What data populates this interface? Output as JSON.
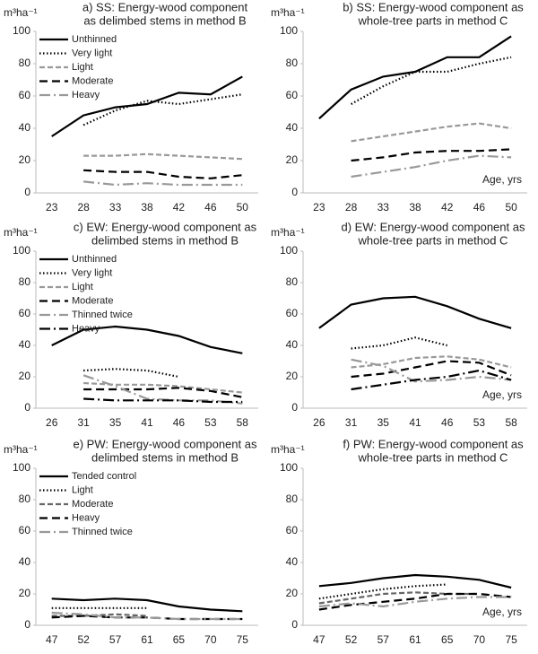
{
  "chart_data": [
    {
      "type": "line",
      "title": [
        "a) SS: Energy-wood component",
        "as delimbed stems in method B"
      ],
      "ylabel": "m³ha⁻¹",
      "categories": [
        "23",
        "28",
        "33",
        "38",
        "42",
        "46",
        "50"
      ],
      "ylim": [
        0,
        100
      ],
      "yticks": [
        0,
        20,
        40,
        60,
        80,
        100
      ],
      "legend": "upper left",
      "series": [
        {
          "name": "Unthinned",
          "color": "#000000",
          "dash": "solid",
          "values": [
            35,
            48,
            53,
            55,
            62,
            61,
            72
          ]
        },
        {
          "name": "Very light",
          "color": "#000000",
          "dash": "dotted",
          "values": [
            null,
            42,
            51,
            57,
            55,
            58,
            61
          ]
        },
        {
          "name": "Light",
          "color": "#999999",
          "dash": "dashed",
          "values": [
            null,
            23,
            23,
            24,
            23,
            22,
            21
          ]
        },
        {
          "name": "Moderate",
          "color": "#000000",
          "dash": "longdash",
          "values": [
            null,
            14,
            13,
            13,
            10,
            9,
            11
          ]
        },
        {
          "name": "Heavy",
          "color": "#999999",
          "dash": "dashdot",
          "values": [
            null,
            7,
            5,
            6,
            5,
            5,
            5
          ]
        }
      ]
    },
    {
      "type": "line",
      "title": [
        "b) SS: Energy-wood component as",
        "whole-tree parts in method C"
      ],
      "ylabel": "m³ha⁻¹",
      "xlabel": "Age, yrs",
      "categories": [
        "23",
        "28",
        "33",
        "38",
        "42",
        "46",
        "50"
      ],
      "ylim": [
        0,
        100
      ],
      "yticks": [
        0,
        20,
        40,
        60,
        80,
        100
      ],
      "series": [
        {
          "color": "#000000",
          "dash": "solid",
          "values": [
            46,
            64,
            72,
            75,
            84,
            84,
            97
          ]
        },
        {
          "color": "#000000",
          "dash": "dotted",
          "values": [
            null,
            55,
            66,
            75,
            75,
            80,
            84
          ]
        },
        {
          "color": "#999999",
          "dash": "dashed",
          "values": [
            null,
            32,
            35,
            38,
            41,
            43,
            40
          ]
        },
        {
          "color": "#000000",
          "dash": "longdash",
          "values": [
            null,
            20,
            22,
            25,
            26,
            26,
            27
          ]
        },
        {
          "color": "#999999",
          "dash": "dashdot",
          "values": [
            null,
            10,
            13,
            16,
            20,
            23,
            22
          ]
        }
      ]
    },
    {
      "type": "line",
      "title": [
        "c) EW: Energy-wood component as",
        "delimbed stems in method B"
      ],
      "ylabel": "m³ha⁻¹",
      "categories": [
        "26",
        "31",
        "35",
        "41",
        "46",
        "53",
        "58"
      ],
      "ylim": [
        0,
        100
      ],
      "yticks": [
        0,
        20,
        40,
        60,
        80,
        100
      ],
      "legend": "upper left",
      "series": [
        {
          "name": "Unthinned",
          "color": "#000000",
          "dash": "solid",
          "values": [
            40,
            50,
            52,
            50,
            46,
            39,
            35
          ]
        },
        {
          "name": "Very light",
          "color": "#000000",
          "dash": "dotted",
          "values": [
            null,
            24,
            25,
            24,
            20,
            null,
            null
          ]
        },
        {
          "name": "Light",
          "color": "#999999",
          "dash": "dashed",
          "values": [
            null,
            16,
            15,
            15,
            14,
            12,
            10
          ]
        },
        {
          "name": "Moderate",
          "color": "#000000",
          "dash": "longdash",
          "values": [
            null,
            12,
            12,
            12,
            13,
            11,
            7
          ]
        },
        {
          "name": "Thinned twice",
          "color": "#999999",
          "dash": "dashdot",
          "values": [
            null,
            21,
            14,
            6,
            5,
            5,
            3
          ]
        },
        {
          "name": "Heavy",
          "color": "#000000",
          "dash": "dashdot",
          "values": [
            null,
            6,
            5,
            5,
            5,
            4,
            4
          ]
        }
      ]
    },
    {
      "type": "line",
      "title": [
        "d) EW: Energy-wood component as",
        "whole-tree parts in method C"
      ],
      "ylabel": "m³ha⁻¹",
      "xlabel": "Age, yrs",
      "categories": [
        "26",
        "31",
        "35",
        "41",
        "46",
        "53",
        "58"
      ],
      "ylim": [
        0,
        100
      ],
      "yticks": [
        0,
        20,
        40,
        60,
        80,
        100
      ],
      "series": [
        {
          "color": "#000000",
          "dash": "solid",
          "values": [
            51,
            66,
            70,
            71,
            65,
            57,
            51
          ]
        },
        {
          "color": "#000000",
          "dash": "dotted",
          "values": [
            null,
            38,
            40,
            45,
            40,
            null,
            null
          ]
        },
        {
          "color": "#999999",
          "dash": "dashed",
          "values": [
            null,
            26,
            28,
            32,
            33,
            31,
            26
          ]
        },
        {
          "color": "#000000",
          "dash": "longdash",
          "values": [
            null,
            20,
            22,
            26,
            30,
            29,
            21
          ]
        },
        {
          "color": "#999999",
          "dash": "dashdot",
          "values": [
            null,
            31,
            27,
            17,
            18,
            20,
            18
          ]
        },
        {
          "color": "#000000",
          "dash": "dashdot",
          "values": [
            null,
            12,
            15,
            18,
            20,
            24,
            18
          ]
        }
      ]
    },
    {
      "type": "line",
      "title": [
        "e) PW: Energy-wood component as",
        "delimbed stems in method B"
      ],
      "ylabel": "m³ha⁻¹",
      "categories": [
        "47",
        "52",
        "57",
        "61",
        "65",
        "70",
        "75"
      ],
      "ylim": [
        0,
        100
      ],
      "yticks": [
        0,
        20,
        40,
        60,
        80,
        100
      ],
      "legend": "upper left",
      "series": [
        {
          "name": "Tended control",
          "color": "#000000",
          "dash": "solid",
          "values": [
            17,
            16,
            17,
            16,
            12,
            10,
            9
          ]
        },
        {
          "name": "Light",
          "color": "#000000",
          "dash": "dotted",
          "values": [
            11,
            11,
            11,
            11,
            null,
            null,
            null
          ]
        },
        {
          "name": "Moderate",
          "color": "#666666",
          "dash": "dashed",
          "values": [
            6,
            6,
            7,
            6,
            null,
            null,
            null
          ]
        },
        {
          "name": "Heavy",
          "color": "#000000",
          "dash": "longdash",
          "values": [
            5,
            6,
            5,
            5,
            4,
            4,
            4
          ]
        },
        {
          "name": "Thinned twice",
          "color": "#999999",
          "dash": "dashdot",
          "values": [
            8,
            7,
            5,
            5,
            4,
            4,
            4
          ]
        }
      ]
    },
    {
      "type": "line",
      "title": [
        "f) PW: Energy-wood component as",
        "whole-tree parts in method C"
      ],
      "ylabel": "m³ha⁻¹",
      "xlabel": "Age, yrs",
      "categories": [
        "47",
        "52",
        "57",
        "61",
        "65",
        "70",
        "75"
      ],
      "ylim": [
        0,
        100
      ],
      "yticks": [
        0,
        20,
        40,
        60,
        80,
        100
      ],
      "series": [
        {
          "color": "#000000",
          "dash": "solid",
          "values": [
            25,
            27,
            30,
            32,
            31,
            29,
            24
          ]
        },
        {
          "color": "#000000",
          "dash": "dotted",
          "values": [
            17,
            20,
            23,
            25,
            26,
            null,
            null
          ]
        },
        {
          "color": "#666666",
          "dash": "dashed",
          "values": [
            14,
            17,
            20,
            21,
            20,
            20,
            null
          ]
        },
        {
          "color": "#000000",
          "dash": "longdash",
          "values": [
            10,
            13,
            15,
            17,
            20,
            20,
            18
          ]
        },
        {
          "color": "#999999",
          "dash": "dashdot",
          "values": [
            12,
            14,
            12,
            15,
            17,
            18,
            18
          ]
        }
      ]
    }
  ]
}
